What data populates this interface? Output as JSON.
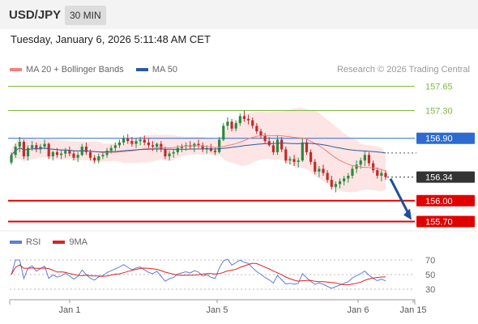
{
  "header": {
    "symbol": "USD/JPY",
    "timeframe": "30 MIN"
  },
  "datetime": "Tuesday, January 6, 2026 5:11:48 AM CET",
  "legend": {
    "items": [
      {
        "label": "MA 20 + Bollinger Bands",
        "color": "#f08080"
      },
      {
        "label": "MA 50",
        "color": "#2d5a9e"
      }
    ],
    "credit": "Research © 2026 Trading Central"
  },
  "rsi_legend": {
    "items": [
      {
        "label": "RSI",
        "color": "#5b7fd6"
      },
      {
        "label": "9MA",
        "color": "#e02020"
      }
    ]
  },
  "chart_data": [
    {
      "type": "candlestick",
      "ylim": [
        155.6,
        157.75
      ],
      "levels": [
        {
          "value": "157.65",
          "kind": "resistance",
          "color": "#80b840"
        },
        {
          "value": "157.30",
          "kind": "resistance",
          "color": "#80b840"
        },
        {
          "value": "156.90",
          "kind": "pivot",
          "color": "#2d6bd0"
        },
        {
          "value": "156.34",
          "kind": "last",
          "color": "#333333"
        },
        {
          "value": "156.00",
          "kind": "support",
          "color": "#e00000"
        },
        {
          "value": "155.70",
          "kind": "support",
          "color": "#e00000"
        }
      ],
      "x_labels": [
        "Jan 1",
        "Jan 5",
        "Jan 6",
        "Jan 15"
      ],
      "projection": {
        "from": 156.34,
        "to": 155.7,
        "color": "#1f4e9a"
      },
      "candles": [
        [
          156.55,
          156.7,
          156.52,
          156.66
        ],
        [
          156.66,
          156.82,
          156.62,
          156.78
        ],
        [
          156.78,
          156.92,
          156.7,
          156.85
        ],
        [
          156.85,
          156.88,
          156.6,
          156.64
        ],
        [
          156.64,
          156.8,
          156.58,
          156.76
        ],
        [
          156.76,
          156.86,
          156.72,
          156.8
        ],
        [
          156.8,
          156.84,
          156.7,
          156.74
        ],
        [
          156.74,
          156.82,
          156.68,
          156.78
        ],
        [
          156.78,
          156.88,
          156.74,
          156.82
        ],
        [
          156.82,
          156.84,
          156.6,
          156.64
        ],
        [
          156.64,
          156.72,
          156.58,
          156.7
        ],
        [
          156.7,
          156.76,
          156.62,
          156.66
        ],
        [
          156.66,
          156.72,
          156.6,
          156.68
        ],
        [
          156.68,
          156.76,
          156.62,
          156.72
        ],
        [
          156.72,
          156.78,
          156.64,
          156.68
        ],
        [
          156.68,
          156.72,
          156.58,
          156.62
        ],
        [
          156.62,
          156.7,
          156.56,
          156.66
        ],
        [
          156.66,
          156.82,
          156.64,
          156.78
        ],
        [
          156.78,
          156.84,
          156.66,
          156.7
        ],
        [
          156.7,
          156.74,
          156.58,
          156.62
        ],
        [
          156.62,
          156.66,
          156.54,
          156.58
        ],
        [
          156.58,
          156.68,
          156.54,
          156.64
        ],
        [
          156.64,
          156.7,
          156.6,
          156.66
        ],
        [
          156.66,
          156.76,
          156.62,
          156.72
        ],
        [
          156.72,
          156.8,
          156.68,
          156.76
        ],
        [
          156.76,
          156.84,
          156.72,
          156.8
        ],
        [
          156.8,
          156.88,
          156.76,
          156.84
        ],
        [
          156.84,
          156.94,
          156.8,
          156.9
        ],
        [
          156.9,
          156.96,
          156.82,
          156.86
        ],
        [
          156.86,
          156.92,
          156.78,
          156.82
        ],
        [
          156.82,
          156.9,
          156.76,
          156.86
        ],
        [
          156.86,
          156.92,
          156.8,
          156.88
        ],
        [
          156.88,
          156.94,
          156.8,
          156.84
        ],
        [
          156.84,
          156.9,
          156.76,
          156.8
        ],
        [
          156.8,
          156.86,
          156.72,
          156.78
        ],
        [
          156.78,
          156.84,
          156.7,
          156.82
        ],
        [
          156.82,
          156.86,
          156.7,
          156.74
        ],
        [
          156.74,
          156.78,
          156.6,
          156.64
        ],
        [
          156.64,
          156.72,
          156.58,
          156.68
        ],
        [
          156.68,
          156.74,
          156.62,
          156.7
        ],
        [
          156.7,
          156.8,
          156.66,
          156.76
        ],
        [
          156.76,
          156.82,
          156.7,
          156.78
        ],
        [
          156.78,
          156.84,
          156.72,
          156.8
        ],
        [
          156.8,
          156.86,
          156.74,
          156.78
        ],
        [
          156.78,
          156.84,
          156.7,
          156.82
        ],
        [
          156.82,
          156.88,
          156.76,
          156.8
        ],
        [
          156.8,
          156.84,
          156.7,
          156.74
        ],
        [
          156.74,
          156.8,
          156.68,
          156.76
        ],
        [
          156.76,
          156.82,
          156.7,
          156.72
        ],
        [
          156.72,
          156.76,
          156.66,
          156.7
        ],
        [
          156.7,
          156.92,
          156.68,
          156.88
        ],
        [
          156.88,
          157.12,
          156.86,
          157.08
        ],
        [
          157.08,
          157.2,
          157.02,
          157.14
        ],
        [
          157.14,
          157.18,
          157.0,
          157.04
        ],
        [
          157.04,
          157.16,
          157.0,
          157.12
        ],
        [
          157.12,
          157.26,
          157.08,
          157.22
        ],
        [
          157.22,
          157.3,
          157.14,
          157.18
        ],
        [
          157.18,
          157.24,
          157.1,
          157.16
        ],
        [
          157.16,
          157.2,
          157.04,
          157.08
        ],
        [
          157.08,
          157.12,
          156.96,
          157.0
        ],
        [
          157.0,
          157.04,
          156.9,
          156.94
        ],
        [
          156.94,
          156.98,
          156.82,
          156.86
        ],
        [
          156.86,
          156.92,
          156.78,
          156.8
        ],
        [
          156.8,
          156.86,
          156.66,
          156.7
        ],
        [
          156.7,
          156.94,
          156.66,
          156.88
        ],
        [
          156.88,
          156.92,
          156.7,
          156.74
        ],
        [
          156.74,
          156.78,
          156.54,
          156.58
        ],
        [
          156.58,
          156.64,
          156.52,
          156.6
        ],
        [
          156.6,
          156.66,
          156.5,
          156.56
        ],
        [
          156.56,
          156.62,
          156.48,
          156.58
        ],
        [
          156.58,
          156.9,
          156.56,
          156.84
        ],
        [
          156.84,
          156.88,
          156.66,
          156.7
        ],
        [
          156.7,
          156.74,
          156.52,
          156.56
        ],
        [
          156.56,
          156.6,
          156.38,
          156.42
        ],
        [
          156.42,
          156.5,
          156.34,
          156.46
        ],
        [
          156.46,
          156.52,
          156.36,
          156.4
        ],
        [
          156.4,
          156.44,
          156.26,
          156.3
        ],
        [
          156.3,
          156.36,
          156.16,
          156.2
        ],
        [
          156.2,
          156.28,
          156.12,
          156.24
        ],
        [
          156.24,
          156.32,
          156.18,
          156.28
        ],
        [
          156.28,
          156.36,
          156.22,
          156.32
        ],
        [
          156.32,
          156.4,
          156.26,
          156.36
        ],
        [
          156.36,
          156.5,
          156.32,
          156.46
        ],
        [
          156.46,
          156.58,
          156.4,
          156.52
        ],
        [
          156.52,
          156.62,
          156.46,
          156.58
        ],
        [
          156.58,
          156.72,
          156.5,
          156.66
        ],
        [
          156.66,
          156.7,
          156.5,
          156.54
        ],
        [
          156.54,
          156.58,
          156.4,
          156.44
        ],
        [
          156.44,
          156.48,
          156.32,
          156.36
        ],
        [
          156.36,
          156.44,
          156.28,
          156.4
        ],
        [
          156.4,
          156.44,
          156.3,
          156.34
        ]
      ]
    },
    {
      "type": "line",
      "series": [
        {
          "name": "RSI"
        },
        {
          "name": "9MA"
        }
      ],
      "ylim": [
        20,
        80
      ],
      "y_ticks": [
        "70",
        "50",
        "30"
      ]
    }
  ]
}
